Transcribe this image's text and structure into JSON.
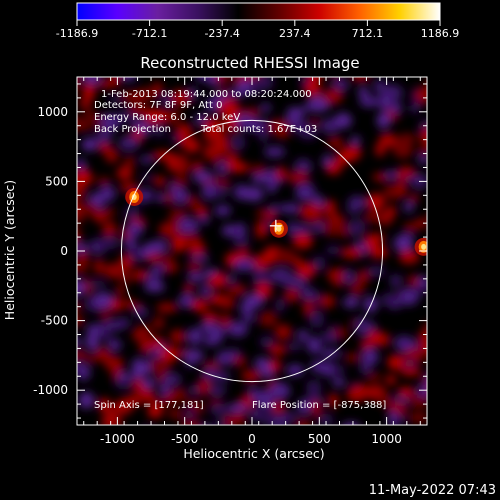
{
  "colorbar": {
    "ticks": [
      -1186.9,
      -712.1,
      -237.4,
      237.4,
      712.1,
      1186.9
    ],
    "tick_labels": [
      "-1186.9",
      "-712.1",
      "-237.4",
      "237.4",
      "712.1",
      "1186.9"
    ],
    "range": [
      -1186.9,
      1186.9
    ],
    "colors": [
      "#0000ff",
      "#5a00ff",
      "#6a1fa0",
      "#3a1060",
      "#000000",
      "#600000",
      "#cc0000",
      "#ff6000",
      "#ffd000",
      "#ffffff"
    ]
  },
  "chart_data": {
    "type": "heatmap",
    "title": "Reconstructed RHESSI Image",
    "xlabel": "Heliocentric X (arcsec)",
    "ylabel": "Heliocentric Y (arcsec)",
    "xlim": [
      -1300,
      1300
    ],
    "ylim": [
      -1250,
      1250
    ],
    "x_ticks": [
      -1000,
      -500,
      0,
      500,
      1000
    ],
    "x_tick_labels": [
      "-1000",
      "-500",
      "0",
      "500",
      "1000"
    ],
    "y_ticks": [
      1000,
      500,
      0,
      -500,
      -1000
    ],
    "y_tick_labels": [
      "1000",
      "500",
      "0",
      "-500",
      "-1000"
    ],
    "solar_limb_radius": 970,
    "annotations": [
      "1-Feb-2013 08:19:44.000 to 08:20:24.000",
      "Detectors: 7F 8F 9F, Att 0",
      "Energy Range: 6.0 - 12.0 keV",
      "Back Projection",
      "Total counts: 1.67E+03"
    ],
    "spin_axis_label": "Spin Axis = [177,181]",
    "flare_position_label": "Flare Position = [-875,388]",
    "spin_axis": [
      177,
      181
    ],
    "flare_position": [
      -875,
      388
    ],
    "bright_sources": [
      {
        "x": -875,
        "y": 388,
        "level": "high"
      },
      {
        "x": 200,
        "y": 160,
        "level": "high"
      },
      {
        "x": 1275,
        "y": 30,
        "level": "high"
      }
    ]
  },
  "footer": {
    "timestamp": "11-May-2022 07:43"
  }
}
